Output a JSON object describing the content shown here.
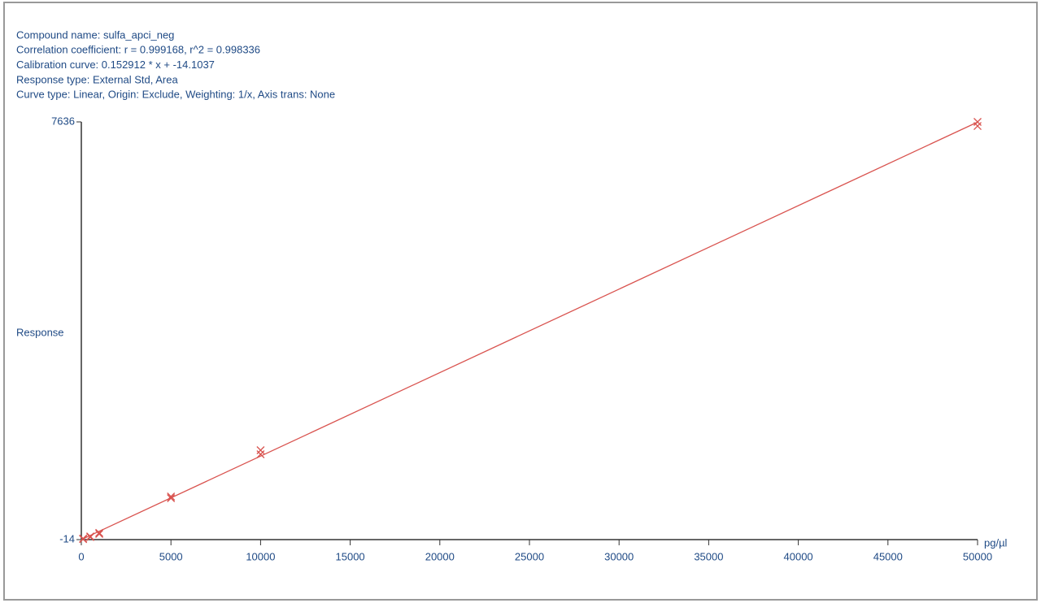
{
  "chart_data": {
    "type": "scatter",
    "info_lines": [
      "Compound name: sulfa_apci_neg",
      "Correlation coefficient: r = 0.999168, r^2 = 0.998336",
      "Calibration curve: 0.152912 * x + -14.1037",
      "Response type: External Std, Area",
      "Curve type: Linear, Origin: Exclude, Weighting: 1/x, Axis trans: None"
    ],
    "y_label": "Response",
    "x_label": "pg/µl",
    "xlim": [
      0,
      50000
    ],
    "xticks": [
      0,
      5000,
      10000,
      15000,
      20000,
      25000,
      30000,
      35000,
      40000,
      45000,
      50000
    ],
    "ylim": [
      -14,
      7636
    ],
    "yticks": [
      -14,
      7636
    ],
    "color": "#d9534f",
    "points": {
      "x": [
        100,
        100,
        500,
        500,
        1000,
        1000,
        5000,
        5000,
        10000,
        10000,
        50000,
        50000
      ],
      "y": [
        -5,
        5,
        31,
        45,
        90,
        110,
        745,
        775,
        1549,
        1623,
        7561,
        7636
      ]
    },
    "fit": {
      "x": [
        0,
        50000
      ],
      "y": [
        -14,
        7632
      ]
    }
  }
}
